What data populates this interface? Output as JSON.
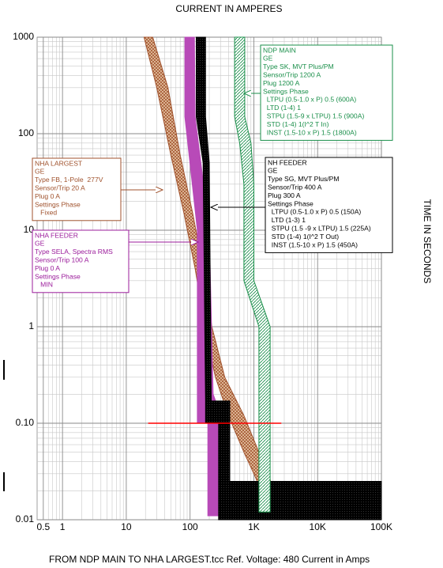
{
  "chart_data": {
    "type": "tcc",
    "title": "CURRENT IN AMPERES",
    "ylabel": "TIME IN SECONDS",
    "footer": "FROM NDP MAIN TO NHA LARGEST.tcc   Ref. Voltage: 480   Current in Amps",
    "xlog": true,
    "ylog": true,
    "grid": true,
    "xlim": [
      0.4,
      100000
    ],
    "ylim": [
      0.01,
      1000
    ],
    "xticks": [
      0.5,
      1,
      10,
      100,
      {
        "value": 1000,
        "label": "1K"
      },
      {
        "value": 10000,
        "label": "10K"
      },
      {
        "value": 100000,
        "label": "100K"
      }
    ],
    "yticks": [
      {
        "value": 0.01,
        "label": "0.01"
      },
      {
        "value": 0.1,
        "label": "0.10"
      },
      1,
      10,
      100,
      1000
    ],
    "series": [
      {
        "color": "#a0522d",
        "hatch": "cross",
        "x": [
          19,
          30,
          50,
          80,
          120,
          170,
          250,
          400,
          700,
          1000,
          1300,
          2000,
          1700,
          1200,
          700,
          350,
          220,
          160,
          110,
          70,
          45,
          26
        ],
        "y": [
          1000,
          300,
          60,
          15,
          4,
          1,
          0.3,
          0.12,
          0.05,
          0.03,
          0.02,
          0.02,
          0.03,
          0.05,
          0.12,
          0.3,
          1,
          4,
          15,
          60,
          300,
          1000
        ]
      },
      {
        "color": "#b84ab8",
        "hatch": "solid",
        "x": [
          83,
          83,
          130,
          130,
          190,
          190,
          340,
          340,
          230,
          200,
          120,
          117
        ],
        "y": [
          1000,
          150,
          10,
          0.1,
          0.1,
          0.011,
          0.011,
          0.1,
          0.2,
          10,
          150,
          1000
        ]
      },
      {
        "color": "#000000",
        "hatch": "dots",
        "x": [
          125,
          125,
          160,
          170,
          175,
          175,
          280,
          280,
          100000,
          100000,
          420,
          420,
          215,
          210,
          200,
          175,
          175
        ],
        "y": [
          1000,
          150,
          50,
          1,
          0.17,
          0.1,
          0.1,
          0.01,
          0.01,
          0.025,
          0.025,
          0.17,
          0.17,
          1,
          50,
          150,
          1000
        ]
      },
      {
        "color": "#1a8f4a",
        "hatch": "diagonal",
        "x": [
          500,
          500,
          600,
          700,
          700,
          1200,
          1200,
          1800,
          1800,
          1000,
          1000,
          900,
          720,
          720
        ],
        "y": [
          1000,
          150,
          80,
          30,
          3,
          1,
          0.012,
          0.012,
          1,
          3,
          30,
          80,
          150,
          1000
        ]
      },
      {
        "color": "#ff0000",
        "hatch": "line",
        "x": [
          22,
          2700
        ],
        "y": [
          0.1,
          0.1
        ]
      }
    ],
    "annotations": [
      {
        "color": "#1a8f4a",
        "lines": [
          "NDP MAIN",
          "GE",
          "Type SK, MVT Plus/PM",
          "Sensor/Trip 1200 A",
          "Plug 1200 A",
          "Settings Phase",
          "  LTPU (0.5-1.0 x P) 0.5 (600A)",
          "  LTD (1-4) 1",
          "  STPU (1.5-9 x LTPU) 1.5 (900A)",
          "  STD (1-4) 1(I^2 T In)",
          "  INST (1.5-10 x P) 1.5 (1800A)"
        ]
      },
      {
        "color": "#a0522d",
        "lines": [
          "NHA LARGEST",
          "GE",
          "Type FB, 1-Pole  277V",
          "Sensor/Trip 20 A",
          "Plug 0 A",
          "Settings Phase",
          "   Fixed"
        ]
      },
      {
        "color": "#9b1c9b",
        "lines": [
          "NHA FEEDER",
          "GE",
          "Type SELA, Spectra RMS",
          "Sensor/Trip 100 A",
          "Plug 0 A",
          "Settings Phase",
          "   MIN"
        ]
      },
      {
        "color": "#000000",
        "lines": [
          "NH FEEDER",
          "GE",
          "Type SG, MVT Plus/PM",
          "Sensor/Trip 400 A",
          "Plug 300 A",
          "Settings Phase",
          "  LTPU (0.5-1.0 x P) 0.5 (150A)",
          "  LTD (1-3) 1",
          "  STPU (1.5 -9 x LTPU) 1.5 (225A)",
          "  STD (1-4) 1(I^2 T Out)",
          "  INST (1.5-10 x P) 1.5 (450A)"
        ]
      }
    ]
  }
}
